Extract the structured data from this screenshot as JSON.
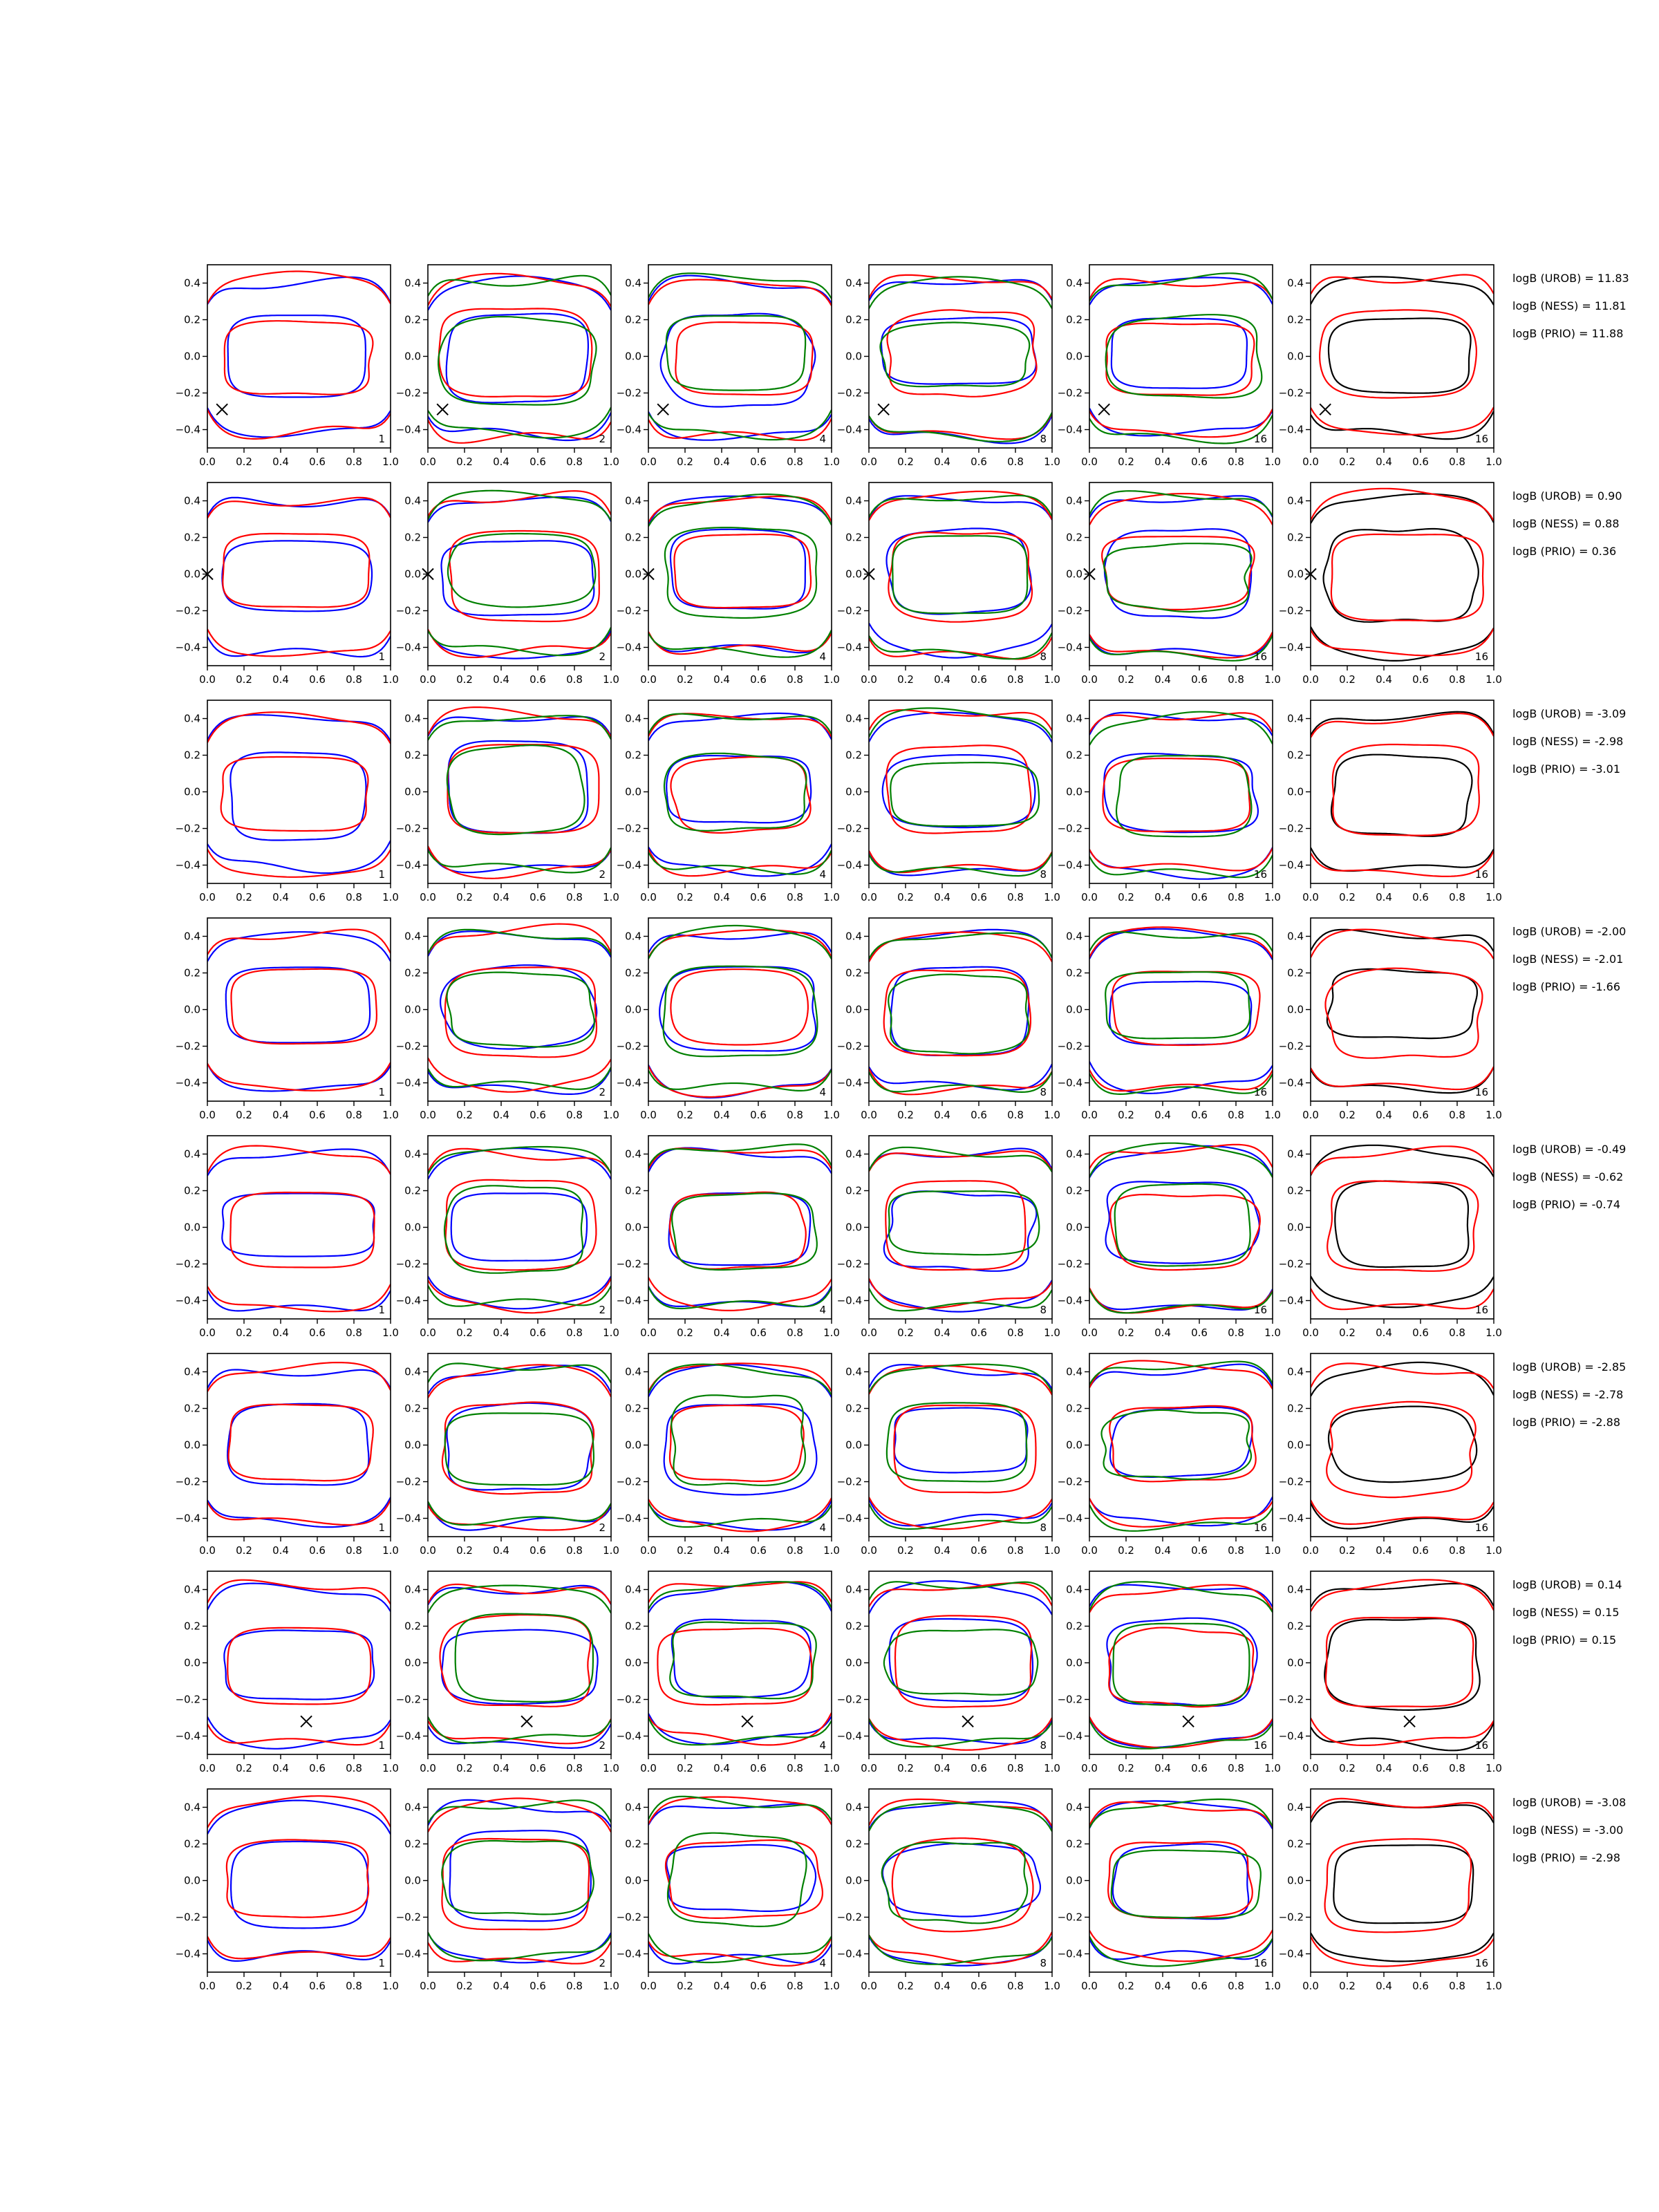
{
  "chart_data": {
    "type": "line",
    "layout": {
      "rows": 8,
      "columns": 6
    },
    "xlim": [
      0.0,
      1.0
    ],
    "ylim": [
      -0.5,
      0.5
    ],
    "x_ticks": [
      "0.0",
      "0.2",
      "0.4",
      "0.6",
      "0.8",
      "1.0"
    ],
    "y_ticks": [
      "0.4",
      "0.2",
      "0.0",
      "−0.2",
      "−0.4"
    ],
    "column_labels": [
      "1",
      "2",
      "4",
      "8",
      "16",
      "16"
    ],
    "series_colors": {
      "red": "#ff0000",
      "blue": "#0000ff",
      "green": "#008000",
      "black": "#000000"
    },
    "rows": [
      {
        "marker": [
          0.08,
          -0.29
        ],
        "annotations": [
          "logB (UROB) = 11.83",
          "logB (NESS) = 11.81",
          "logB (PRIO) = 11.88"
        ]
      },
      {
        "marker": [
          0.0,
          0.0
        ],
        "annotations": [
          "logB (UROB) = 0.90",
          "logB (NESS) = 0.88",
          "logB (PRIO) = 0.36"
        ]
      },
      {
        "marker": null,
        "annotations": [
          "logB (UROB) = -3.09",
          "logB (NESS) = -2.98",
          "logB (PRIO) = -3.01"
        ]
      },
      {
        "marker": null,
        "annotations": [
          "logB (UROB) = -2.00",
          "logB (NESS) = -2.01",
          "logB (PRIO) = -1.66"
        ]
      },
      {
        "marker": null,
        "annotations": [
          "logB (UROB) = -0.49",
          "logB (NESS) = -0.62",
          "logB (PRIO) = -0.74"
        ]
      },
      {
        "marker": null,
        "annotations": [
          "logB (UROB) = -2.85",
          "logB (NESS) = -2.78",
          "logB (PRIO) = -2.88"
        ]
      },
      {
        "marker": [
          0.54,
          -0.32
        ],
        "annotations": [
          "logB (UROB) = 0.14",
          "logB (NESS) = 0.15",
          "logB (PRIO) = 0.15"
        ]
      },
      {
        "marker": null,
        "annotations": [
          "logB (UROB) = -3.08",
          "logB (NESS) = -3.00",
          "logB (PRIO) = -2.98"
        ]
      }
    ]
  }
}
